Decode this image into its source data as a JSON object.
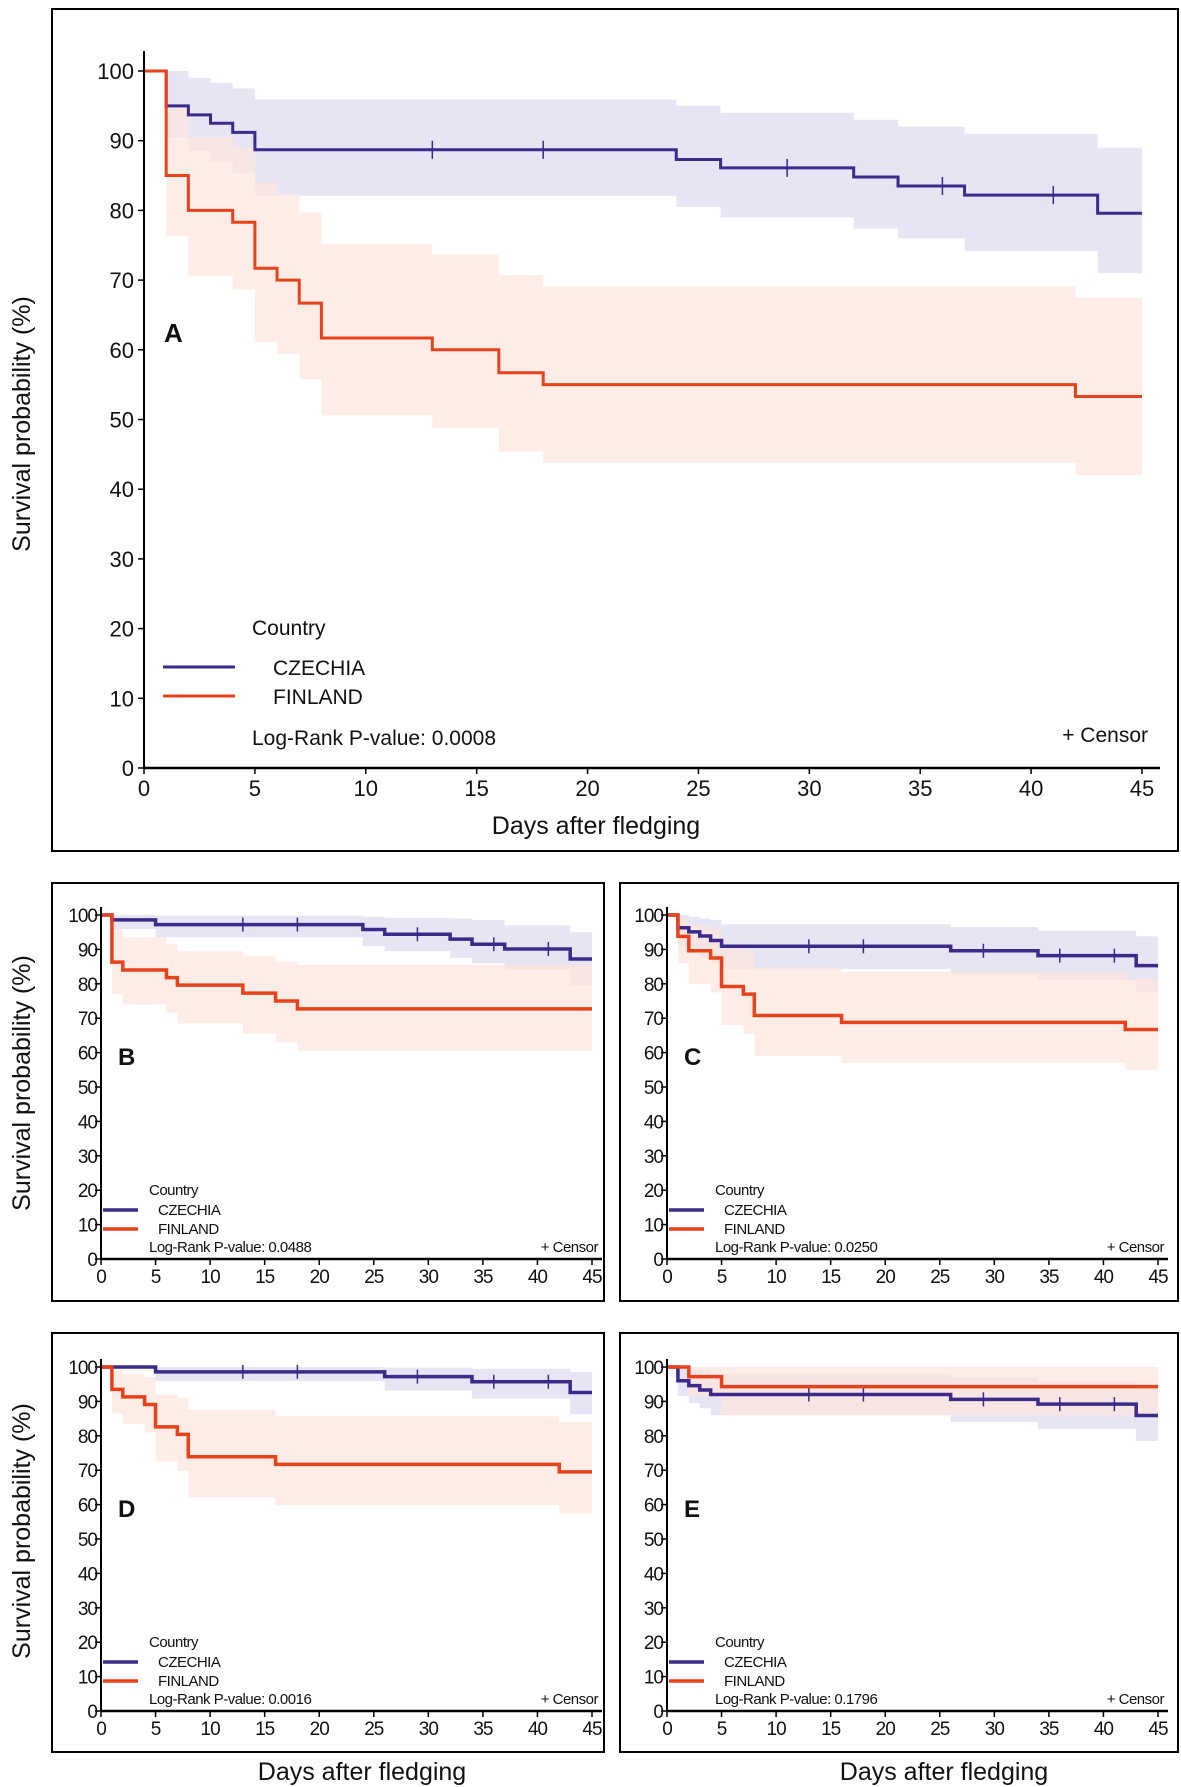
{
  "colors": {
    "CZECHIA": "#3b2a8a",
    "FINLAND": "#e8421c",
    "CZECHIA_band": "#ddd9f0",
    "FINLAND_band": "#fde6dc"
  },
  "shared_axis_titles": {
    "y_label_middle_row": "Survival probability (%)",
    "y_label_bottom_row": "Survival probability (%)",
    "x_label_left": "Days after fledging",
    "x_label_right": "Days after fledging"
  },
  "chart_data": [
    {
      "panel": "A",
      "type": "line",
      "xlabel": "Days after fledging",
      "ylabel": "Survival probability (%)",
      "xlim": [
        0,
        45
      ],
      "ylim": [
        0,
        100
      ],
      "xticks": [
        "0",
        "5",
        "10",
        "15",
        "20",
        "25",
        "30",
        "35",
        "40",
        "45"
      ],
      "yticks": [
        "0",
        "10",
        "20",
        "30",
        "40",
        "50",
        "60",
        "70",
        "80",
        "90",
        "100"
      ],
      "legend_title": "Country",
      "pvalue_text": "Log-Rank P-value: 0.0008",
      "censor_label": "+ Censor",
      "series": [
        {
          "name": "CZECHIA",
          "steps": [
            [
              0,
              100
            ],
            [
              1,
              95
            ],
            [
              2,
              93.7
            ],
            [
              3,
              92.5
            ],
            [
              4,
              91.2
            ],
            [
              5,
              88.7
            ],
            [
              24,
              87.3
            ],
            [
              26,
              86.1
            ],
            [
              32,
              84.8
            ],
            [
              34,
              83.5
            ],
            [
              37,
              82.2
            ],
            [
              43,
              79.6
            ]
          ],
          "ci": [
            [
              1,
              90.4,
              100
            ],
            [
              2,
              88.5,
              99
            ],
            [
              3,
              87,
              98.3
            ],
            [
              4,
              85.4,
              97.5
            ],
            [
              5,
              82.1,
              95.9
            ],
            [
              24,
              80.5,
              95
            ],
            [
              26,
              79,
              94
            ],
            [
              32,
              77.4,
              93
            ],
            [
              34,
              76,
              92
            ],
            [
              37,
              74.2,
              91
            ],
            [
              43,
              71,
              89
            ]
          ],
          "censor": [
            13,
            18,
            29,
            36,
            41
          ]
        },
        {
          "name": "FINLAND",
          "steps": [
            [
              0,
              100
            ],
            [
              1,
              85
            ],
            [
              2,
              80
            ],
            [
              4,
              78.3
            ],
            [
              5,
              71.7
            ],
            [
              6,
              70
            ],
            [
              7,
              66.7
            ],
            [
              8,
              61.7
            ],
            [
              13,
              60
            ],
            [
              16,
              56.7
            ],
            [
              18,
              55
            ],
            [
              42,
              53.3
            ]
          ],
          "ci": [
            [
              1,
              76.3,
              94.7
            ],
            [
              2,
              70.6,
              90.5
            ],
            [
              4,
              68.6,
              89
            ],
            [
              5,
              61.1,
              84
            ],
            [
              6,
              59.4,
              82.4
            ],
            [
              7,
              55.8,
              79.7
            ],
            [
              8,
              50.6,
              75.2
            ],
            [
              13,
              48.8,
              73.7
            ],
            [
              16,
              45.4,
              70.7
            ],
            [
              18,
              43.8,
              69.1
            ],
            [
              42,
              42,
              67.5
            ]
          ],
          "censor": []
        }
      ]
    },
    {
      "panel": "B",
      "type": "line",
      "xlim": [
        0,
        45
      ],
      "ylim": [
        0,
        100
      ],
      "xticks": [
        "0",
        "5",
        "10",
        "15",
        "20",
        "25",
        "30",
        "35",
        "40",
        "45"
      ],
      "yticks": [
        "0",
        "10",
        "20",
        "30",
        "40",
        "50",
        "60",
        "70",
        "80",
        "90",
        "100"
      ],
      "legend_title": "Country",
      "pvalue_text": "Log-Rank P-value: 0.0488",
      "censor_label": "+ Censor",
      "series": [
        {
          "name": "CZECHIA",
          "steps": [
            [
              0,
              100
            ],
            [
              1,
              98.6
            ],
            [
              5,
              97.2
            ],
            [
              24,
              95.8
            ],
            [
              26,
              94.4
            ],
            [
              32,
              93
            ],
            [
              34,
              91.5
            ],
            [
              37,
              90.1
            ],
            [
              43,
              87.2
            ]
          ],
          "ci": [
            [
              1,
              95.9,
              100
            ],
            [
              5,
              93.5,
              99.8
            ],
            [
              24,
              91,
              99.5
            ],
            [
              26,
              89.5,
              99.2
            ],
            [
              32,
              87.5,
              99
            ],
            [
              34,
              86,
              98.5
            ],
            [
              37,
              84,
              97
            ],
            [
              43,
              79.5,
              95
            ]
          ],
          "censor": [
            13,
            18,
            29,
            36,
            41
          ]
        },
        {
          "name": "FINLAND",
          "steps": [
            [
              0,
              100
            ],
            [
              1,
              86.3
            ],
            [
              2,
              84
            ],
            [
              6,
              81.8
            ],
            [
              7,
              79.6
            ],
            [
              13,
              77.3
            ],
            [
              16,
              75
            ],
            [
              18,
              72.7
            ]
          ],
          "ci": [
            [
              1,
              77,
              96
            ],
            [
              2,
              74,
              93.5
            ],
            [
              6,
              71.5,
              91.5
            ],
            [
              7,
              68.5,
              89.5
            ],
            [
              13,
              65.5,
              88
            ],
            [
              16,
              63,
              86.5
            ],
            [
              18,
              60.5,
              85.5
            ]
          ],
          "censor": []
        }
      ]
    },
    {
      "panel": "C",
      "type": "line",
      "xlim": [
        0,
        45
      ],
      "ylim": [
        0,
        100
      ],
      "xticks": [
        "0",
        "5",
        "10",
        "15",
        "20",
        "25",
        "30",
        "35",
        "40",
        "45"
      ],
      "yticks": [
        "0",
        "10",
        "20",
        "30",
        "40",
        "50",
        "60",
        "70",
        "80",
        "90",
        "100"
      ],
      "legend_title": "Country",
      "pvalue_text": "Log-Rank P-value: 0.0250",
      "censor_label": "+ Censor",
      "series": [
        {
          "name": "CZECHIA",
          "steps": [
            [
              0,
              100
            ],
            [
              1,
              96.3
            ],
            [
              2,
              95.1
            ],
            [
              3,
              93.9
            ],
            [
              4,
              92.6
            ],
            [
              5,
              90.9
            ],
            [
              26,
              89.6
            ],
            [
              34,
              88.2
            ],
            [
              43,
              85.3
            ]
          ],
          "ci": [
            [
              1,
              91,
              100
            ],
            [
              2,
              89.5,
              99.5
            ],
            [
              3,
              87.5,
              99
            ],
            [
              4,
              86,
              98.5
            ],
            [
              5,
              84.3,
              97.3
            ],
            [
              26,
              82.8,
              96.5
            ],
            [
              34,
              81,
              95.5
            ],
            [
              43,
              77.5,
              93.8
            ]
          ],
          "censor": [
            13,
            18,
            29,
            36,
            41
          ]
        },
        {
          "name": "FINLAND",
          "steps": [
            [
              0,
              100
            ],
            [
              1,
              93.8
            ],
            [
              2,
              89.6
            ],
            [
              4,
              87.5
            ],
            [
              5,
              79.2
            ],
            [
              7,
              77
            ],
            [
              8,
              70.8
            ],
            [
              16,
              68.8
            ],
            [
              42,
              66.7
            ]
          ],
          "ci": [
            [
              1,
              86,
              99
            ],
            [
              2,
              80,
              97
            ],
            [
              4,
              77.5,
              96
            ],
            [
              5,
              68,
              91
            ],
            [
              7,
              65.5,
              89.5
            ],
            [
              8,
              59,
              84.5
            ],
            [
              16,
              57,
              83.5
            ],
            [
              42,
              55,
              81.5
            ]
          ],
          "censor": []
        }
      ]
    },
    {
      "panel": "D",
      "type": "line",
      "xlim": [
        0,
        45
      ],
      "ylim": [
        0,
        100
      ],
      "xticks": [
        "0",
        "5",
        "10",
        "15",
        "20",
        "25",
        "30",
        "35",
        "40",
        "45"
      ],
      "yticks": [
        "0",
        "10",
        "20",
        "30",
        "40",
        "50",
        "60",
        "70",
        "80",
        "90",
        "100"
      ],
      "legend_title": "Country",
      "pvalue_text": "Log-Rank P-value: 0.0016",
      "censor_label": "+ Censor",
      "series": [
        {
          "name": "CZECHIA",
          "steps": [
            [
              0,
              100
            ],
            [
              5,
              98.6
            ],
            [
              26,
              97.2
            ],
            [
              34,
              95.7
            ],
            [
              43,
              92.6
            ]
          ],
          "ci": [
            [
              5,
              95.9,
              100
            ],
            [
              26,
              93.2,
              99.8
            ],
            [
              34,
              90.8,
              99.5
            ],
            [
              43,
              86.3,
              98.5
            ]
          ],
          "censor": [
            13,
            18,
            29,
            36,
            41
          ]
        },
        {
          "name": "FINLAND",
          "steps": [
            [
              0,
              100
            ],
            [
              1,
              93.5
            ],
            [
              2,
              91.3
            ],
            [
              4,
              89.1
            ],
            [
              5,
              82.6
            ],
            [
              7,
              80.4
            ],
            [
              8,
              73.9
            ],
            [
              16,
              71.7
            ],
            [
              42,
              69.5
            ]
          ],
          "ci": [
            [
              1,
              86.5,
              99
            ],
            [
              2,
              83.5,
              98
            ],
            [
              4,
              81,
              97
            ],
            [
              5,
              72.5,
              92
            ],
            [
              7,
              69.8,
              91
            ],
            [
              8,
              62.2,
              87.6
            ],
            [
              16,
              59.8,
              85.7
            ],
            [
              42,
              57.4,
              84
            ]
          ],
          "censor": []
        }
      ]
    },
    {
      "panel": "E",
      "type": "line",
      "xlim": [
        0,
        45
      ],
      "ylim": [
        0,
        100
      ],
      "xticks": [
        "0",
        "5",
        "10",
        "15",
        "20",
        "25",
        "30",
        "35",
        "40",
        "45"
      ],
      "yticks": [
        "0",
        "10",
        "20",
        "30",
        "40",
        "50",
        "60",
        "70",
        "80",
        "90",
        "100"
      ],
      "legend_title": "Country",
      "pvalue_text": "Log-Rank P-value: 0.1796",
      "censor_label": "+ Censor",
      "series": [
        {
          "name": "CZECHIA",
          "steps": [
            [
              0,
              100
            ],
            [
              1,
              96
            ],
            [
              2,
              94.6
            ],
            [
              3,
              93.3
            ],
            [
              4,
              92
            ],
            [
              26,
              90.6
            ],
            [
              34,
              89.2
            ],
            [
              43,
              85.9
            ]
          ],
          "ci": [
            [
              1,
              91.5,
              100
            ],
            [
              2,
              89.5,
              99.5
            ],
            [
              3,
              88,
              99
            ],
            [
              4,
              86,
              98
            ],
            [
              26,
              84,
              97
            ],
            [
              34,
              82,
              96
            ],
            [
              43,
              78.5,
              94
            ]
          ],
          "censor": [
            13,
            18,
            29,
            36,
            41
          ]
        },
        {
          "name": "FINLAND",
          "steps": [
            [
              0,
              100
            ],
            [
              2,
              97.2
            ],
            [
              5,
              94.3
            ]
          ],
          "ci": [
            [
              2,
              91.5,
              100
            ],
            [
              5,
              86,
              100
            ]
          ],
          "censor": []
        }
      ]
    }
  ]
}
